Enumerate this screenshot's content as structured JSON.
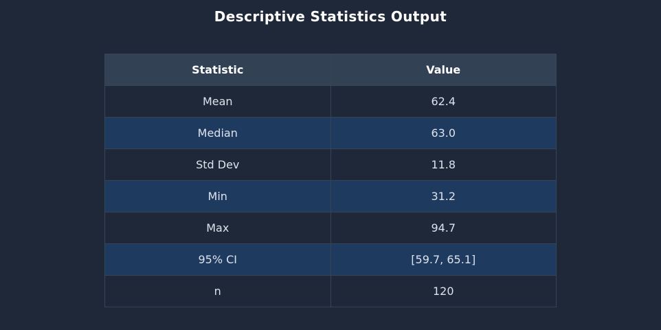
{
  "page": {
    "title": "Descriptive Statistics Output"
  },
  "table": {
    "columns": {
      "statistic": "Statistic",
      "value": "Value"
    },
    "rows": [
      {
        "statistic": "Mean",
        "value": "62.4"
      },
      {
        "statistic": "Median",
        "value": "63.0"
      },
      {
        "statistic": "Std Dev",
        "value": "11.8"
      },
      {
        "statistic": "Min",
        "value": "31.2"
      },
      {
        "statistic": "Max",
        "value": "94.7"
      },
      {
        "statistic": "95% CI",
        "value": "[59.7, 65.1]"
      },
      {
        "statistic": "n",
        "value": "120"
      }
    ]
  },
  "colors": {
    "page_background": "#1e2838",
    "header_background": "#334155",
    "row_highlight_background": "#1e3a5f",
    "border": "#374357",
    "title_text": "#ffffff",
    "body_text": "#dde3ec"
  },
  "chart_data": {
    "type": "table",
    "title": "Descriptive Statistics Output",
    "columns": [
      "Statistic",
      "Value"
    ],
    "rows": [
      [
        "Mean",
        "62.4"
      ],
      [
        "Median",
        "63.0"
      ],
      [
        "Std Dev",
        "11.8"
      ],
      [
        "Min",
        "31.2"
      ],
      [
        "Max",
        "94.7"
      ],
      [
        "95% CI",
        "[59.7, 65.1]"
      ],
      [
        "n",
        "120"
      ]
    ],
    "numeric_summary": {
      "mean": 62.4,
      "median": 63.0,
      "std_dev": 11.8,
      "min": 31.2,
      "max": 94.7,
      "ci_95": [
        59.7,
        65.1
      ],
      "n": 120
    }
  }
}
